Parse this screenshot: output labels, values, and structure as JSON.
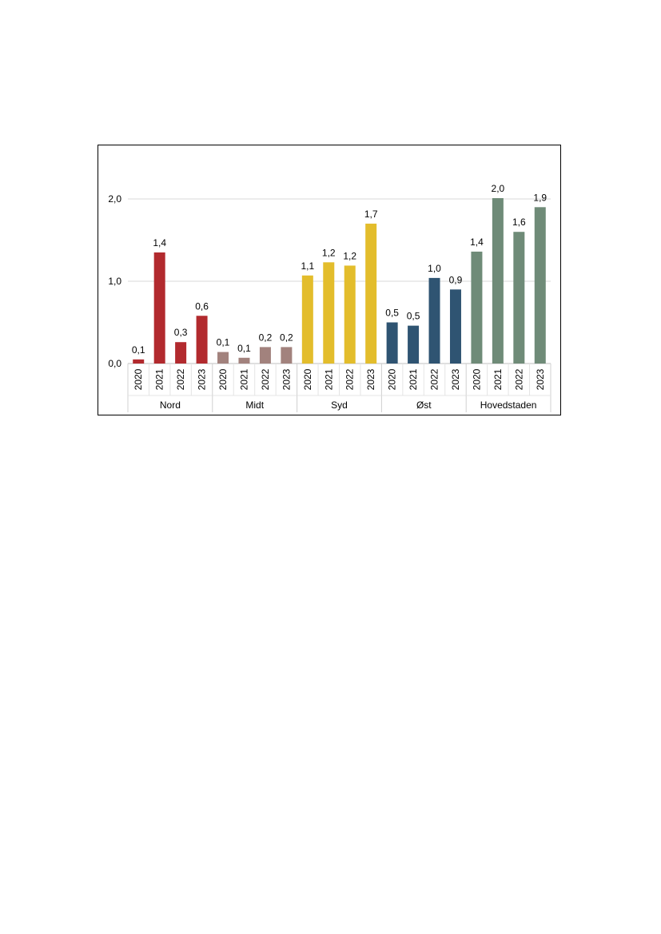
{
  "chart_data": {
    "type": "bar",
    "title": "",
    "xlabel": "",
    "ylabel": "",
    "ylim": [
      0,
      2.0
    ],
    "yticks": [
      "0,0",
      "1,0",
      "2,0"
    ],
    "ytick_values": [
      0,
      1,
      2
    ],
    "grid": true,
    "groups": [
      {
        "name": "Nord",
        "color": "#b22a2e",
        "categories": [
          "2020",
          "2021",
          "2022",
          "2023"
        ],
        "values": [
          0.05,
          1.35,
          0.26,
          0.58
        ],
        "labels": [
          "0,1",
          "1,4",
          "0,3",
          "0,6"
        ]
      },
      {
        "name": "Midt",
        "color": "#a2827d",
        "categories": [
          "2020",
          "2021",
          "2022",
          "2023"
        ],
        "values": [
          0.14,
          0.07,
          0.2,
          0.2
        ],
        "labels": [
          "0,1",
          "0,1",
          "0,2",
          "0,2"
        ]
      },
      {
        "name": "Syd",
        "color": "#e3bd2c",
        "categories": [
          "2020",
          "2021",
          "2022",
          "2023"
        ],
        "values": [
          1.07,
          1.23,
          1.19,
          1.7
        ],
        "labels": [
          "1,1",
          "1,2",
          "1,2",
          "1,7"
        ]
      },
      {
        "name": "Øst",
        "color": "#2f5472",
        "categories": [
          "2020",
          "2021",
          "2022",
          "2023"
        ],
        "values": [
          0.5,
          0.46,
          1.04,
          0.9
        ],
        "labels": [
          "0,5",
          "0,5",
          "1,0",
          "0,9"
        ]
      },
      {
        "name": "Hovedstaden",
        "color": "#6f8b78",
        "categories": [
          "2020",
          "2021",
          "2022",
          "2023"
        ],
        "values": [
          1.36,
          2.01,
          1.6,
          1.9
        ],
        "labels": [
          "1,4",
          "2,0",
          "1,6",
          "1,9"
        ]
      }
    ]
  }
}
